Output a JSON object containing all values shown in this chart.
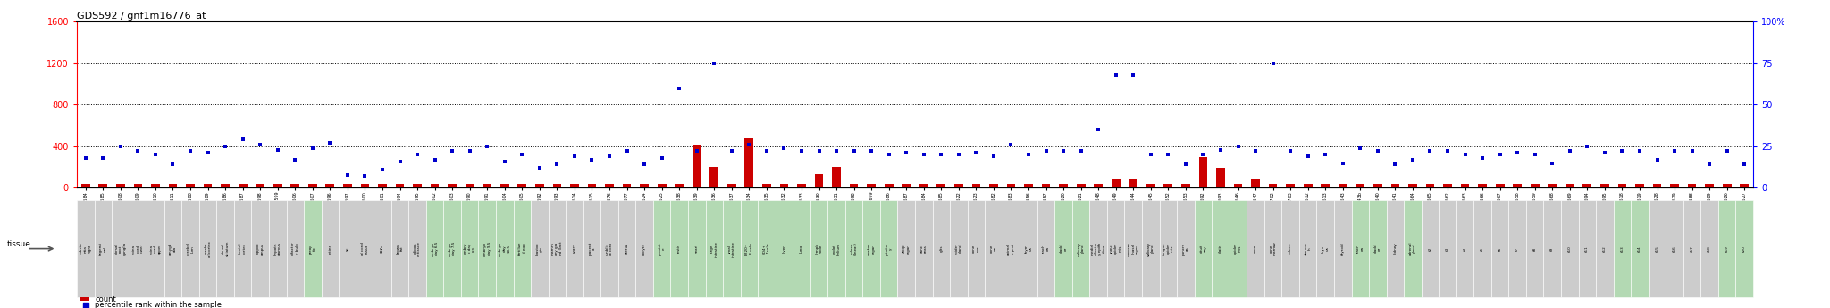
{
  "title": "GDS592 / gnf1m16776_at",
  "left_ylim": [
    0,
    1600
  ],
  "right_ylim": [
    0,
    100
  ],
  "left_yticks": [
    0,
    400,
    800,
    1200,
    1600
  ],
  "right_yticks": [
    0,
    25,
    50,
    75,
    100
  ],
  "right_ytick_labels": [
    "0",
    "25",
    "50",
    "75",
    "100%"
  ],
  "samples": [
    {
      "gsm": "GSM18584",
      "tissue": "substa\nntia\nnigra",
      "count": 35,
      "pct": 18,
      "tissue_bg": "#cccccc"
    },
    {
      "gsm": "GSM18585",
      "tissue": "trigemi\nnal",
      "count": 35,
      "pct": 18,
      "tissue_bg": "#cccccc"
    },
    {
      "gsm": "GSM18608",
      "tissue": "dorsal\nroot\nganglia",
      "count": 35,
      "pct": 25,
      "tissue_bg": "#cccccc"
    },
    {
      "gsm": "GSM18609",
      "tissue": "spinal\ncord\nlower",
      "count": 35,
      "pct": 22,
      "tissue_bg": "#cccccc"
    },
    {
      "gsm": "GSM18610",
      "tissue": "spinal\ncord\nupper",
      "count": 35,
      "pct": 20,
      "tissue_bg": "#cccccc"
    },
    {
      "gsm": "GSM18611",
      "tissue": "amygd\nala",
      "count": 35,
      "pct": 14,
      "tissue_bg": "#cccccc"
    },
    {
      "gsm": "GSM18588",
      "tissue": "cerebel\nlum",
      "count": 35,
      "pct": 22,
      "tissue_bg": "#cccccc"
    },
    {
      "gsm": "GSM18589",
      "tissue": "cerebr\nal cortex",
      "count": 35,
      "pct": 21,
      "tissue_bg": "#cccccc"
    },
    {
      "gsm": "GSM18586",
      "tissue": "dorsal\nstriatum",
      "count": 35,
      "pct": 25,
      "tissue_bg": "#cccccc"
    },
    {
      "gsm": "GSM18587",
      "tissue": "frontal\ncortex",
      "count": 35,
      "pct": 29,
      "tissue_bg": "#cccccc"
    },
    {
      "gsm": "GSM18598",
      "tissue": "hippoc\nampus",
      "count": 35,
      "pct": 26,
      "tissue_bg": "#cccccc"
    },
    {
      "gsm": "GSM18599",
      "tissue": "hypoth\nalamus",
      "count": 35,
      "pct": 23,
      "tissue_bg": "#cccccc"
    },
    {
      "gsm": "GSM18606",
      "tissue": "olfactor\ny bulb",
      "count": 35,
      "pct": 17,
      "tissue_bg": "#cccccc"
    },
    {
      "gsm": "GSM18607",
      "tissue": "preop\ntic",
      "count": 35,
      "pct": 24,
      "tissue_bg": "#b3d9b3"
    },
    {
      "gsm": "GSM18596",
      "tissue": "retina",
      "count": 35,
      "pct": 27,
      "tissue_bg": "#cccccc"
    },
    {
      "gsm": "GSM18597",
      "tissue": "sc",
      "count": 35,
      "pct": 8,
      "tissue_bg": "#cccccc"
    },
    {
      "gsm": "GSM18600",
      "tissue": "al cond\ntissue",
      "count": 35,
      "pct": 7,
      "tissue_bg": "#cccccc"
    },
    {
      "gsm": "GSM18601",
      "tissue": "EBKs",
      "count": 35,
      "pct": 11,
      "tissue_bg": "#cccccc"
    },
    {
      "gsm": "GSM18594",
      "tissue": "brown\nfat",
      "count": 35,
      "pct": 16,
      "tissue_bg": "#cccccc"
    },
    {
      "gsm": "GSM18595",
      "tissue": "adipos\ne tissue",
      "count": 35,
      "pct": 20,
      "tissue_bg": "#cccccc"
    },
    {
      "gsm": "GSM18602",
      "tissue": "embryo\nday 6.5",
      "count": 35,
      "pct": 17,
      "tissue_bg": "#b3d9b3"
    },
    {
      "gsm": "GSM18603",
      "tissue": "embryo\nday 7.5",
      "count": 35,
      "pct": 22,
      "tissue_bg": "#b3d9b3"
    },
    {
      "gsm": "GSM18590",
      "tissue": "embry\no day\n8.5",
      "count": 35,
      "pct": 22,
      "tissue_bg": "#b3d9b3"
    },
    {
      "gsm": "GSM18591",
      "tissue": "embryo\nday 9.5",
      "count": 35,
      "pct": 25,
      "tissue_bg": "#b3d9b3"
    },
    {
      "gsm": "GSM18604",
      "tissue": "embryo\nday\n10.5",
      "count": 35,
      "pct": 16,
      "tissue_bg": "#b3d9b3"
    },
    {
      "gsm": "GSM18605",
      "tissue": "fertilize\nd egg",
      "count": 35,
      "pct": 20,
      "tissue_bg": "#b3d9b3"
    },
    {
      "gsm": "GSM18592",
      "tissue": "blastoc\nyts",
      "count": 35,
      "pct": 12,
      "tissue_bg": "#cccccc"
    },
    {
      "gsm": "GSM18593",
      "tissue": "mamm\nary gla\nnd (lact",
      "count": 35,
      "pct": 14,
      "tissue_bg": "#cccccc"
    },
    {
      "gsm": "GSM18614",
      "tissue": "ovary",
      "count": 35,
      "pct": 19,
      "tissue_bg": "#cccccc"
    },
    {
      "gsm": "GSM18615",
      "tissue": "placent\na",
      "count": 35,
      "pct": 17,
      "tissue_bg": "#cccccc"
    },
    {
      "gsm": "GSM18676",
      "tissue": "umblic\nal cord",
      "count": 35,
      "pct": 19,
      "tissue_bg": "#cccccc"
    },
    {
      "gsm": "GSM18677",
      "tissue": "uterus",
      "count": 35,
      "pct": 22,
      "tissue_bg": "#cccccc"
    },
    {
      "gsm": "GSM18624",
      "tissue": "oocyte",
      "count": 35,
      "pct": 14,
      "tissue_bg": "#cccccc"
    },
    {
      "gsm": "GSM18625",
      "tissue": "prostat\ne",
      "count": 35,
      "pct": 18,
      "tissue_bg": "#b3d9b3"
    },
    {
      "gsm": "GSM18638",
      "tissue": "testis",
      "count": 35,
      "pct": 60,
      "tissue_bg": "#b3d9b3"
    },
    {
      "gsm": "GSM18639",
      "tissue": "heart",
      "count": 420,
      "pct": 22,
      "tissue_bg": "#b3d9b3"
    },
    {
      "gsm": "GSM18636",
      "tissue": "large\nintestine",
      "count": 200,
      "pct": 75,
      "tissue_bg": "#b3d9b3"
    },
    {
      "gsm": "GSM18637",
      "tissue": "small\nintestine",
      "count": 35,
      "pct": 22,
      "tissue_bg": "#b3d9b3"
    },
    {
      "gsm": "GSM18634",
      "tissue": "B220+\nB cells",
      "count": 480,
      "pct": 26,
      "tissue_bg": "#b3d9b3"
    },
    {
      "gsm": "GSM18635",
      "tissue": "CD4+\nT cells",
      "count": 35,
      "pct": 22,
      "tissue_bg": "#b3d9b3"
    },
    {
      "gsm": "GSM18632",
      "tissue": "liver",
      "count": 35,
      "pct": 24,
      "tissue_bg": "#b3d9b3"
    },
    {
      "gsm": "GSM18633",
      "tissue": "lung",
      "count": 35,
      "pct": 22,
      "tissue_bg": "#b3d9b3"
    },
    {
      "gsm": "GSM18630",
      "tissue": "lymph\nnode",
      "count": 130,
      "pct": 22,
      "tissue_bg": "#b3d9b3"
    },
    {
      "gsm": "GSM18631",
      "tissue": "endot\nhelium",
      "count": 200,
      "pct": 22,
      "tissue_bg": "#b3d9b3"
    },
    {
      "gsm": "GSM18698",
      "tissue": "spleen\n(linear)",
      "count": 35,
      "pct": 22,
      "tissue_bg": "#b3d9b3"
    },
    {
      "gsm": "GSM18699",
      "tissue": "worker\norgan",
      "count": 35,
      "pct": 22,
      "tissue_bg": "#b3d9b3"
    },
    {
      "gsm": "GSM18686",
      "tissue": "pituitar\ny",
      "count": 35,
      "pct": 20,
      "tissue_bg": "#b3d9b3"
    },
    {
      "gsm": "GSM18687",
      "tissue": "uniqe\norgan",
      "count": 35,
      "pct": 21,
      "tissue_bg": "#cccccc"
    },
    {
      "gsm": "GSM18684",
      "tissue": "panc\nreas",
      "count": 35,
      "pct": 20,
      "tissue_bg": "#cccccc"
    },
    {
      "gsm": "GSM18685",
      "tissue": "glts",
      "count": 35,
      "pct": 20,
      "tissue_bg": "#cccccc"
    },
    {
      "gsm": "GSM18622",
      "tissue": "spider\ngland",
      "count": 35,
      "pct": 20,
      "tissue_bg": "#cccccc"
    },
    {
      "gsm": "GSM18623",
      "tissue": "bone\nma",
      "count": 35,
      "pct": 21,
      "tissue_bg": "#cccccc"
    },
    {
      "gsm": "GSM18682",
      "tissue": "bone\nea",
      "count": 35,
      "pct": 19,
      "tissue_bg": "#cccccc"
    },
    {
      "gsm": "GSM18683",
      "tissue": "animal\na prot",
      "count": 35,
      "pct": 26,
      "tissue_bg": "#cccccc"
    },
    {
      "gsm": "GSM18656",
      "tissue": "thym\nus",
      "count": 35,
      "pct": 20,
      "tissue_bg": "#cccccc"
    },
    {
      "gsm": "GSM18657",
      "tissue": "trach\nea",
      "count": 35,
      "pct": 22,
      "tissue_bg": "#cccccc"
    },
    {
      "gsm": "GSM18620",
      "tissue": "bladd\ner",
      "count": 35,
      "pct": 22,
      "tissue_bg": "#b3d9b3"
    },
    {
      "gsm": "GSM18621",
      "tissue": "salivary\ngland",
      "count": 35,
      "pct": 22,
      "tissue_bg": "#b3d9b3"
    },
    {
      "gsm": "GSM18648",
      "tissue": "medial\nolfactor\ny epith\nelium",
      "count": 35,
      "pct": 35,
      "tissue_bg": "#cccccc"
    },
    {
      "gsm": "GSM18649",
      "tissue": "snout\nepider\nmis",
      "count": 80,
      "pct": 68,
      "tissue_bg": "#cccccc"
    },
    {
      "gsm": "GSM18644",
      "tissue": "vomera\nlinasal\norgan",
      "count": 80,
      "pct": 68,
      "tissue_bg": "#cccccc"
    },
    {
      "gsm": "GSM18645",
      "tissue": "salivary\ngland",
      "count": 35,
      "pct": 20,
      "tissue_bg": "#cccccc"
    },
    {
      "gsm": "GSM18652",
      "tissue": "tongue\nepider\nmis",
      "count": 35,
      "pct": 20,
      "tissue_bg": "#cccccc"
    },
    {
      "gsm": "GSM18653",
      "tissue": "pancre\nas",
      "count": 35,
      "pct": 14,
      "tissue_bg": "#cccccc"
    },
    {
      "gsm": "GSM18692",
      "tissue": "pituit\nary",
      "count": 300,
      "pct": 20,
      "tissue_bg": "#b3d9b3"
    },
    {
      "gsm": "GSM18693",
      "tissue": "digits",
      "count": 190,
      "pct": 23,
      "tissue_bg": "#b3d9b3"
    },
    {
      "gsm": "GSM18646",
      "tissue": "epider\nmis",
      "count": 35,
      "pct": 25,
      "tissue_bg": "#b3d9b3"
    },
    {
      "gsm": "GSM18647",
      "tissue": "bone",
      "count": 80,
      "pct": 22,
      "tissue_bg": "#cccccc"
    },
    {
      "gsm": "GSM17702",
      "tissue": "bone\nmarrow",
      "count": 35,
      "pct": 75,
      "tissue_bg": "#cccccc"
    },
    {
      "gsm": "GSM17703",
      "tissue": "spleen",
      "count": 35,
      "pct": 22,
      "tissue_bg": "#cccccc"
    },
    {
      "gsm": "GSM18612",
      "tissue": "stomac\nh",
      "count": 35,
      "pct": 19,
      "tissue_bg": "#cccccc"
    },
    {
      "gsm": "GSM18613",
      "tissue": "thym\nus",
      "count": 35,
      "pct": 20,
      "tissue_bg": "#cccccc"
    },
    {
      "gsm": "GSM18643",
      "tissue": "thyroid",
      "count": 35,
      "pct": 15,
      "tissue_bg": "#cccccc"
    },
    {
      "gsm": "GSM18643b",
      "tissue": "trach\nea",
      "count": 35,
      "pct": 24,
      "tissue_bg": "#b3d9b3"
    },
    {
      "gsm": "GSM18640",
      "tissue": "bladd\ner",
      "count": 35,
      "pct": 22,
      "tissue_bg": "#b3d9b3"
    },
    {
      "gsm": "GSM18641",
      "tissue": "kidney",
      "count": 35,
      "pct": 14,
      "tissue_bg": "#cccccc"
    },
    {
      "gsm": "GSM18664",
      "tissue": "adrenal\ngland",
      "count": 35,
      "pct": 17,
      "tissue_bg": "#b3d9b3"
    },
    {
      "gsm": "GSM18665",
      "tissue": "t2",
      "count": 35,
      "pct": 22,
      "tissue_bg": "#cccccc"
    },
    {
      "gsm": "GSM18662",
      "tissue": "t3",
      "count": 35,
      "pct": 22,
      "tissue_bg": "#cccccc"
    },
    {
      "gsm": "GSM18663",
      "tissue": "t4",
      "count": 35,
      "pct": 20,
      "tissue_bg": "#cccccc"
    },
    {
      "gsm": "GSM18666",
      "tissue": "t5",
      "count": 35,
      "pct": 18,
      "tissue_bg": "#cccccc"
    },
    {
      "gsm": "GSM18667",
      "tissue": "t6",
      "count": 35,
      "pct": 20,
      "tissue_bg": "#cccccc"
    },
    {
      "gsm": "GSM18658",
      "tissue": "t7",
      "count": 35,
      "pct": 21,
      "tissue_bg": "#cccccc"
    },
    {
      "gsm": "GSM18659",
      "tissue": "t8",
      "count": 35,
      "pct": 20,
      "tissue_bg": "#cccccc"
    },
    {
      "gsm": "GSM18668",
      "tissue": "t9",
      "count": 35,
      "pct": 15,
      "tissue_bg": "#cccccc"
    },
    {
      "gsm": "GSM18669",
      "tissue": "t10",
      "count": 35,
      "pct": 22,
      "tissue_bg": "#cccccc"
    },
    {
      "gsm": "GSM18694",
      "tissue": "t11",
      "count": 35,
      "pct": 25,
      "tissue_bg": "#cccccc"
    },
    {
      "gsm": "GSM18695",
      "tissue": "t12",
      "count": 35,
      "pct": 21,
      "tissue_bg": "#cccccc"
    },
    {
      "gsm": "GSM18618",
      "tissue": "t13",
      "count": 35,
      "pct": 22,
      "tissue_bg": "#b3d9b3"
    },
    {
      "gsm": "GSM18619",
      "tissue": "t14",
      "count": 35,
      "pct": 22,
      "tissue_bg": "#b3d9b3"
    },
    {
      "gsm": "GSM18628",
      "tissue": "t15",
      "count": 35,
      "pct": 17,
      "tissue_bg": "#cccccc"
    },
    {
      "gsm": "GSM18629",
      "tissue": "t16",
      "count": 35,
      "pct": 22,
      "tissue_bg": "#cccccc"
    },
    {
      "gsm": "GSM18688",
      "tissue": "t17",
      "count": 35,
      "pct": 22,
      "tissue_bg": "#cccccc"
    },
    {
      "gsm": "GSM18689",
      "tissue": "t18",
      "count": 35,
      "pct": 14,
      "tissue_bg": "#cccccc"
    },
    {
      "gsm": "GSM18626",
      "tissue": "t19",
      "count": 35,
      "pct": 22,
      "tissue_bg": "#b3d9b3"
    },
    {
      "gsm": "GSM18627",
      "tissue": "t20",
      "count": 35,
      "pct": 14,
      "tissue_bg": "#b3d9b3"
    }
  ]
}
